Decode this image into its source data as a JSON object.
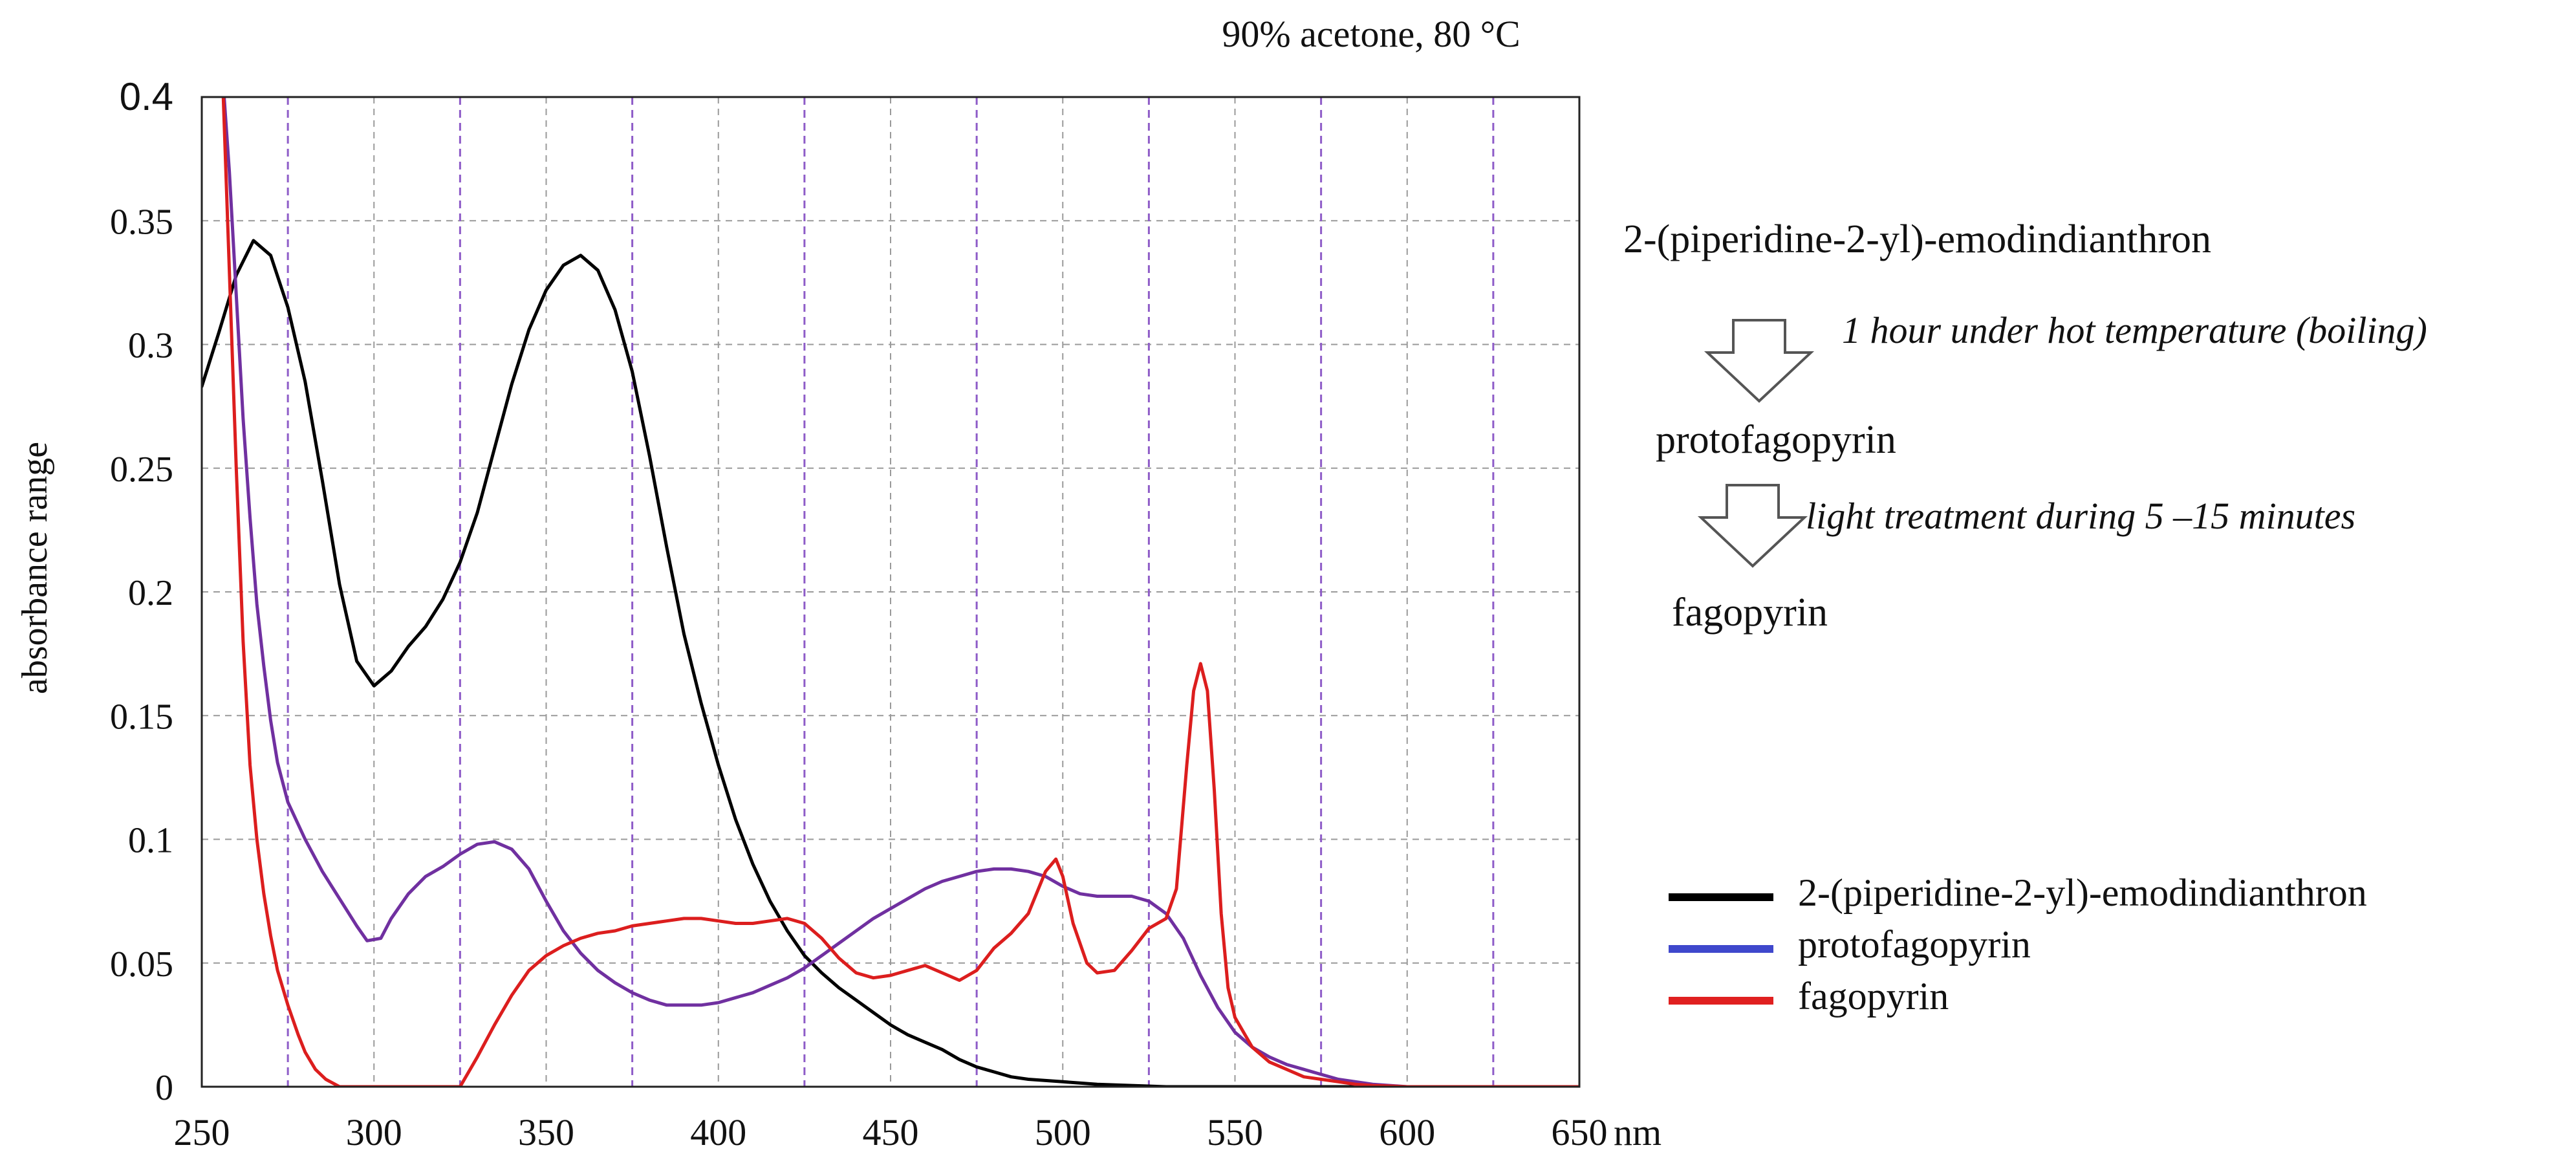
{
  "chart_data": {
    "type": "line",
    "title": "90% acetone, 80 °C",
    "xlabel": "nm",
    "ylabel": "absorbance range",
    "xlim": [
      250,
      650
    ],
    "ylim": [
      0,
      0.4
    ],
    "x_ticks": [
      250,
      300,
      350,
      400,
      450,
      500,
      550,
      600,
      650
    ],
    "x_tick_labels": [
      "250",
      "300",
      "350",
      "400",
      "450",
      "500",
      "550",
      "600",
      "650"
    ],
    "y_ticks": [
      0,
      0.05,
      0.1,
      0.15,
      0.2,
      0.25,
      0.3,
      0.35,
      0.4
    ],
    "y_tick_labels": [
      "0",
      "0.05",
      "0.1",
      "0.15",
      "0.2",
      "0.25",
      "0.3",
      "0.35",
      "0.4"
    ],
    "grid_minor_x": [
      275,
      325,
      375,
      425,
      475,
      525,
      575,
      625
    ],
    "grid": true,
    "series": [
      {
        "name": "2-(piperidine-2-yl)-emodindianthron",
        "color": "#000000",
        "points": [
          [
            250,
            0.283
          ],
          [
            255,
            0.305
          ],
          [
            260,
            0.328
          ],
          [
            265,
            0.342
          ],
          [
            270,
            0.336
          ],
          [
            275,
            0.315
          ],
          [
            280,
            0.285
          ],
          [
            285,
            0.245
          ],
          [
            290,
            0.203
          ],
          [
            295,
            0.172
          ],
          [
            300,
            0.162
          ],
          [
            305,
            0.168
          ],
          [
            310,
            0.178
          ],
          [
            315,
            0.186
          ],
          [
            320,
            0.197
          ],
          [
            325,
            0.212
          ],
          [
            330,
            0.232
          ],
          [
            335,
            0.258
          ],
          [
            340,
            0.284
          ],
          [
            345,
            0.306
          ],
          [
            350,
            0.322
          ],
          [
            355,
            0.332
          ],
          [
            360,
            0.336
          ],
          [
            365,
            0.33
          ],
          [
            370,
            0.314
          ],
          [
            375,
            0.289
          ],
          [
            380,
            0.255
          ],
          [
            385,
            0.218
          ],
          [
            390,
            0.183
          ],
          [
            395,
            0.155
          ],
          [
            400,
            0.13
          ],
          [
            405,
            0.108
          ],
          [
            410,
            0.09
          ],
          [
            415,
            0.075
          ],
          [
            420,
            0.063
          ],
          [
            425,
            0.053
          ],
          [
            430,
            0.046
          ],
          [
            435,
            0.04
          ],
          [
            440,
            0.035
          ],
          [
            445,
            0.03
          ],
          [
            450,
            0.025
          ],
          [
            455,
            0.021
          ],
          [
            460,
            0.018
          ],
          [
            465,
            0.015
          ],
          [
            470,
            0.011
          ],
          [
            475,
            0.008
          ],
          [
            480,
            0.006
          ],
          [
            485,
            0.004
          ],
          [
            490,
            0.003
          ],
          [
            500,
            0.002
          ],
          [
            510,
            0.001
          ],
          [
            520,
            0.0005
          ],
          [
            530,
            0
          ],
          [
            650,
            0
          ]
        ]
      },
      {
        "name": "protofagopyrin",
        "color": "#7030a0",
        "legend_color": "#3f48cc",
        "points": [
          [
            256,
            0.41
          ],
          [
            258,
            0.37
          ],
          [
            260,
            0.32
          ],
          [
            262,
            0.27
          ],
          [
            264,
            0.23
          ],
          [
            266,
            0.195
          ],
          [
            268,
            0.17
          ],
          [
            270,
            0.148
          ],
          [
            272,
            0.131
          ],
          [
            275,
            0.115
          ],
          [
            280,
            0.1
          ],
          [
            285,
            0.087
          ],
          [
            290,
            0.076
          ],
          [
            295,
            0.065
          ],
          [
            298,
            0.059
          ],
          [
            302,
            0.06
          ],
          [
            305,
            0.068
          ],
          [
            310,
            0.078
          ],
          [
            315,
            0.085
          ],
          [
            320,
            0.089
          ],
          [
            325,
            0.094
          ],
          [
            330,
            0.098
          ],
          [
            335,
            0.099
          ],
          [
            340,
            0.096
          ],
          [
            345,
            0.088
          ],
          [
            350,
            0.075
          ],
          [
            355,
            0.063
          ],
          [
            360,
            0.054
          ],
          [
            365,
            0.047
          ],
          [
            370,
            0.042
          ],
          [
            375,
            0.038
          ],
          [
            380,
            0.035
          ],
          [
            385,
            0.033
          ],
          [
            390,
            0.033
          ],
          [
            395,
            0.033
          ],
          [
            400,
            0.034
          ],
          [
            405,
            0.036
          ],
          [
            410,
            0.038
          ],
          [
            415,
            0.041
          ],
          [
            420,
            0.044
          ],
          [
            425,
            0.048
          ],
          [
            430,
            0.053
          ],
          [
            435,
            0.058
          ],
          [
            440,
            0.063
          ],
          [
            445,
            0.068
          ],
          [
            450,
            0.072
          ],
          [
            455,
            0.076
          ],
          [
            460,
            0.08
          ],
          [
            465,
            0.083
          ],
          [
            470,
            0.085
          ],
          [
            475,
            0.087
          ],
          [
            480,
            0.088
          ],
          [
            485,
            0.088
          ],
          [
            490,
            0.087
          ],
          [
            495,
            0.085
          ],
          [
            500,
            0.081
          ],
          [
            505,
            0.078
          ],
          [
            510,
            0.077
          ],
          [
            515,
            0.077
          ],
          [
            520,
            0.077
          ],
          [
            525,
            0.075
          ],
          [
            530,
            0.07
          ],
          [
            535,
            0.06
          ],
          [
            540,
            0.045
          ],
          [
            545,
            0.032
          ],
          [
            550,
            0.022
          ],
          [
            555,
            0.016
          ],
          [
            560,
            0.012
          ],
          [
            565,
            0.009
          ],
          [
            570,
            0.007
          ],
          [
            575,
            0.005
          ],
          [
            580,
            0.003
          ],
          [
            585,
            0.002
          ],
          [
            590,
            0.001
          ],
          [
            595,
            0.0005
          ],
          [
            600,
            0
          ],
          [
            650,
            0
          ]
        ]
      },
      {
        "name": "fagopyrin",
        "color": "#dc1e1e",
        "legend_color": "#e02020",
        "points": [
          [
            256,
            0.41
          ],
          [
            258,
            0.33
          ],
          [
            260,
            0.25
          ],
          [
            262,
            0.18
          ],
          [
            264,
            0.13
          ],
          [
            266,
            0.1
          ],
          [
            268,
            0.078
          ],
          [
            270,
            0.061
          ],
          [
            272,
            0.047
          ],
          [
            275,
            0.033
          ],
          [
            278,
            0.021
          ],
          [
            280,
            0.014
          ],
          [
            283,
            0.007
          ],
          [
            286,
            0.003
          ],
          [
            290,
            0
          ],
          [
            325,
            0
          ],
          [
            330,
            0.012
          ],
          [
            335,
            0.025
          ],
          [
            340,
            0.037
          ],
          [
            345,
            0.047
          ],
          [
            350,
            0.053
          ],
          [
            355,
            0.057
          ],
          [
            360,
            0.06
          ],
          [
            365,
            0.062
          ],
          [
            370,
            0.063
          ],
          [
            375,
            0.065
          ],
          [
            380,
            0.066
          ],
          [
            385,
            0.067
          ],
          [
            390,
            0.068
          ],
          [
            395,
            0.068
          ],
          [
            400,
            0.067
          ],
          [
            405,
            0.066
          ],
          [
            410,
            0.066
          ],
          [
            415,
            0.067
          ],
          [
            420,
            0.068
          ],
          [
            425,
            0.066
          ],
          [
            430,
            0.06
          ],
          [
            435,
            0.052
          ],
          [
            440,
            0.046
          ],
          [
            445,
            0.044
          ],
          [
            450,
            0.045
          ],
          [
            455,
            0.047
          ],
          [
            460,
            0.049
          ],
          [
            465,
            0.046
          ],
          [
            470,
            0.043
          ],
          [
            475,
            0.047
          ],
          [
            480,
            0.056
          ],
          [
            485,
            0.062
          ],
          [
            490,
            0.07
          ],
          [
            495,
            0.087
          ],
          [
            498,
            0.092
          ],
          [
            500,
            0.085
          ],
          [
            503,
            0.066
          ],
          [
            507,
            0.05
          ],
          [
            510,
            0.046
          ],
          [
            515,
            0.047
          ],
          [
            520,
            0.055
          ],
          [
            525,
            0.064
          ],
          [
            530,
            0.068
          ],
          [
            533,
            0.08
          ],
          [
            536,
            0.13
          ],
          [
            538,
            0.16
          ],
          [
            540,
            0.171
          ],
          [
            542,
            0.16
          ],
          [
            544,
            0.12
          ],
          [
            546,
            0.07
          ],
          [
            548,
            0.04
          ],
          [
            550,
            0.028
          ],
          [
            555,
            0.016
          ],
          [
            560,
            0.01
          ],
          [
            565,
            0.007
          ],
          [
            570,
            0.004
          ],
          [
            575,
            0.003
          ],
          [
            580,
            0.002
          ],
          [
            585,
            0.001
          ],
          [
            590,
            0.0005
          ],
          [
            600,
            0
          ],
          [
            650,
            0
          ]
        ]
      }
    ],
    "legend_position": "bottom-right"
  },
  "scheme": {
    "step1": "2-(piperidine-2-yl)-emodindianthron",
    "arrow1_label": "1 hour under hot temperature (boiling)",
    "step2": "protofagopyrin",
    "arrow2_label": "light treatment during 5 –15 minutes",
    "step3": "fagopyrin"
  }
}
